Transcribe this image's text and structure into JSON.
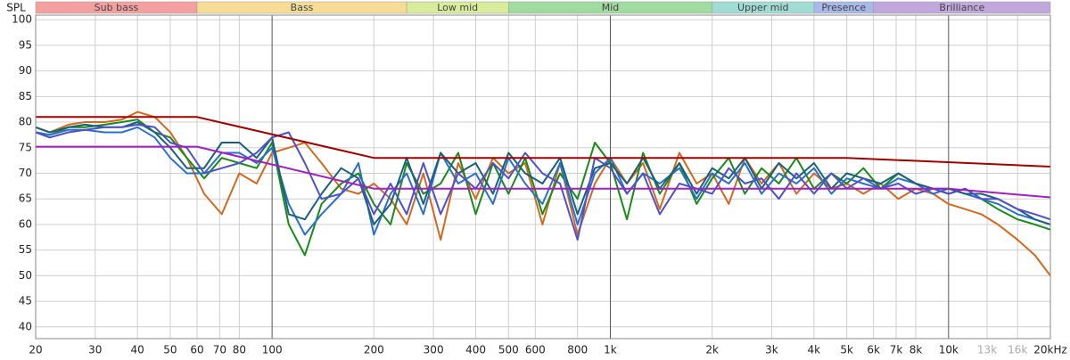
{
  "chart_data": {
    "type": "line",
    "y_label": "SPL",
    "log_x": true,
    "grid": true,
    "xlim": [
      20,
      20000
    ],
    "ylim": [
      37.7,
      100.9
    ],
    "yticks": [
      40,
      45,
      50,
      55,
      60,
      65,
      70,
      75,
      80,
      85,
      90,
      95,
      100
    ],
    "xticks": [
      20,
      30,
      40,
      50,
      60,
      70,
      80,
      100,
      200,
      300,
      400,
      500,
      600,
      800,
      {
        "value": 1000,
        "label": "1k"
      },
      {
        "value": 2000,
        "label": "2k"
      },
      {
        "value": 3000,
        "label": "3k"
      },
      {
        "value": 4000,
        "label": "4k"
      },
      {
        "value": 5000,
        "label": "5k"
      },
      {
        "value": 6000,
        "label": "6k"
      },
      {
        "value": 7000,
        "label": "7k"
      },
      {
        "value": 8000,
        "label": "8k"
      },
      {
        "value": 10000,
        "label": "10k"
      },
      {
        "value": 13000,
        "label": "13k",
        "color": "#aaaaaa"
      },
      {
        "value": 16000,
        "label": "16k",
        "color": "#aaaaaa"
      },
      {
        "value": 20000,
        "label": "20kHz"
      }
    ],
    "bands": [
      {
        "name": "Sub bass",
        "from": 20,
        "to": 60,
        "color": "#f4a0a0"
      },
      {
        "name": "Bass",
        "from": 60,
        "to": 250,
        "color": "#f6dc94"
      },
      {
        "name": "Low mid",
        "from": 250,
        "to": 500,
        "color": "#d8ec9c"
      },
      {
        "name": "Mid",
        "from": 500,
        "to": 2000,
        "color": "#a0dca0"
      },
      {
        "name": "Upper mid",
        "from": 2000,
        "to": 4000,
        "color": "#a0dcd4"
      },
      {
        "name": "Presence",
        "from": 4000,
        "to": 6000,
        "color": "#a8b8e8"
      },
      {
        "name": "Brilliance",
        "from": 6000,
        "to": 20000,
        "color": "#c0a8dc"
      }
    ],
    "x": [
      20,
      22,
      25,
      28,
      32,
      36,
      40,
      45,
      50,
      56,
      63,
      71,
      80,
      90,
      100,
      112,
      125,
      140,
      160,
      180,
      200,
      224,
      250,
      280,
      315,
      355,
      400,
      450,
      500,
      560,
      630,
      710,
      800,
      900,
      1000,
      1120,
      1250,
      1400,
      1600,
      1800,
      2000,
      2240,
      2500,
      2800,
      3150,
      3550,
      4000,
      4500,
      5000,
      5600,
      6300,
      7100,
      8000,
      9000,
      10000,
      11200,
      12500,
      14000,
      16000,
      18000,
      20000
    ],
    "series": [
      {
        "color": "#d2691e",
        "values": [
          79,
          78,
          79.5,
          80,
          80,
          80.5,
          82,
          81,
          78,
          73,
          66,
          62,
          70,
          68,
          74,
          75,
          76,
          72,
          67,
          66,
          68,
          65,
          60,
          70,
          57,
          72,
          65,
          73,
          70,
          72,
          60,
          72,
          58,
          68,
          73,
          68,
          72,
          63,
          74,
          68,
          70,
          64,
          73,
          68,
          72,
          66,
          70,
          67,
          68,
          66,
          68,
          65,
          67,
          66,
          64,
          63,
          62,
          60,
          57,
          54,
          50
        ]
      },
      {
        "color": "#1a8a1a",
        "values": [
          78,
          77.5,
          79,
          79,
          79.5,
          80,
          80.5,
          78,
          77,
          73,
          69,
          73,
          72,
          71,
          76,
          60,
          54,
          64,
          68,
          70,
          64,
          60,
          72,
          66,
          68,
          74,
          62,
          72,
          66,
          73,
          62,
          70,
          65,
          76,
          72,
          61,
          74,
          66,
          72,
          64,
          69,
          73,
          66,
          71,
          68,
          73,
          67,
          70,
          68,
          71,
          67,
          70,
          68,
          67,
          66,
          67,
          65,
          63,
          61,
          60,
          59
        ]
      },
      {
        "color": "#2a70c8",
        "values": [
          78,
          77.5,
          78.5,
          78.5,
          78,
          78,
          79,
          77,
          73,
          70,
          70,
          74,
          74,
          72,
          75,
          64,
          58,
          62,
          66,
          72,
          58,
          66,
          70,
          62,
          74,
          68,
          70,
          64,
          73,
          68,
          64,
          72,
          60,
          70,
          73,
          66,
          70,
          68,
          71,
          65,
          70,
          68,
          72,
          66,
          70,
          68,
          71,
          66,
          69,
          68,
          67,
          69,
          68,
          66,
          67,
          66,
          65,
          64,
          62,
          61,
          60
        ]
      },
      {
        "color": "#1a6078",
        "values": [
          79,
          78,
          79,
          79.5,
          79,
          79,
          80,
          78,
          75,
          71,
          71,
          76,
          76,
          73,
          77,
          62,
          61,
          66,
          71,
          69,
          60,
          64,
          73,
          64,
          74,
          70,
          72,
          66,
          74,
          70,
          68,
          73,
          62,
          71,
          72,
          68,
          73,
          67,
          72,
          66,
          71,
          69,
          73,
          67,
          72,
          69,
          72,
          67,
          70,
          69,
          68,
          70,
          68,
          67,
          67,
          66,
          66,
          65,
          63,
          61,
          60
        ]
      },
      {
        "color": "#5050c8",
        "values": [
          78,
          77,
          78,
          78.5,
          79,
          79,
          79.5,
          79,
          76,
          75,
          70,
          71,
          72,
          74,
          77,
          78,
          72,
          65,
          66,
          69,
          62,
          68,
          62,
          72,
          62,
          70,
          67,
          72,
          69,
          74,
          70,
          68,
          57,
          73,
          71,
          66,
          70,
          62,
          68,
          67,
          66,
          71,
          68,
          69,
          65,
          70,
          66,
          70,
          67,
          69,
          67,
          68,
          66,
          67,
          66,
          67,
          65,
          65,
          63,
          62,
          61
        ]
      },
      {
        "color": "#a00000",
        "x": [
          20,
          60,
          200,
          5000,
          20000
        ],
        "values": [
          81,
          81,
          73,
          73,
          71.3
        ]
      },
      {
        "color": "#a020c0",
        "x": [
          20,
          60,
          200,
          10000,
          20000
        ],
        "values": [
          75.2,
          75.2,
          67,
          67,
          65.3
        ]
      }
    ]
  }
}
